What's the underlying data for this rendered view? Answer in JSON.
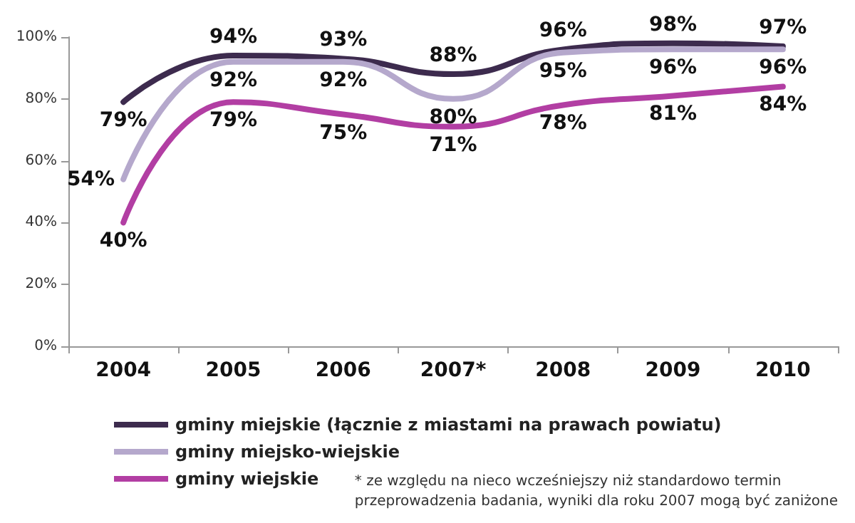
{
  "chart_data": {
    "type": "line",
    "categories": [
      "2004",
      "2005",
      "2006",
      "2007*",
      "2008",
      "2009",
      "2010"
    ],
    "series": [
      {
        "name": "gminy miejskie (łącznie z miastami na prawach powiatu)",
        "color": "#3d2b4e",
        "values": [
          79,
          94,
          93,
          88,
          96,
          98,
          97
        ],
        "value_labels": [
          "79%",
          "94%",
          "93%",
          "88%",
          "96%",
          "98%",
          "97%"
        ]
      },
      {
        "name": "gminy miejsko-wiejskie",
        "color": "#b5a8cc",
        "values": [
          54,
          92,
          92,
          80,
          95,
          96,
          96
        ],
        "value_labels": [
          "54%",
          "92%",
          "92%",
          "80%",
          "95%",
          "96%",
          "96%"
        ]
      },
      {
        "name": "gminy wiejskie",
        "color": "#b23ea3",
        "values": [
          40,
          79,
          75,
          71,
          78,
          81,
          84
        ],
        "value_labels": [
          "40%",
          "79%",
          "75%",
          "71%",
          "78%",
          "81%",
          "84%"
        ]
      }
    ],
    "ylim": [
      0,
      100
    ],
    "yticks": [
      {
        "value": 0,
        "label": "0%"
      },
      {
        "value": 20,
        "label": "20%"
      },
      {
        "value": 40,
        "label": "40%"
      },
      {
        "value": 60,
        "label": "60%"
      },
      {
        "value": 80,
        "label": "80%"
      },
      {
        "value": 100,
        "label": "100%"
      }
    ],
    "grid": false,
    "legend": "bottom left",
    "marker": "none",
    "line_style": "solid",
    "annotations": [
      "* ze względu na nieco wcześniejszy niż standardowo termin\nprzeprowadzenia badania, wyniki dla roku 2007 mogą być zaniżone"
    ]
  }
}
